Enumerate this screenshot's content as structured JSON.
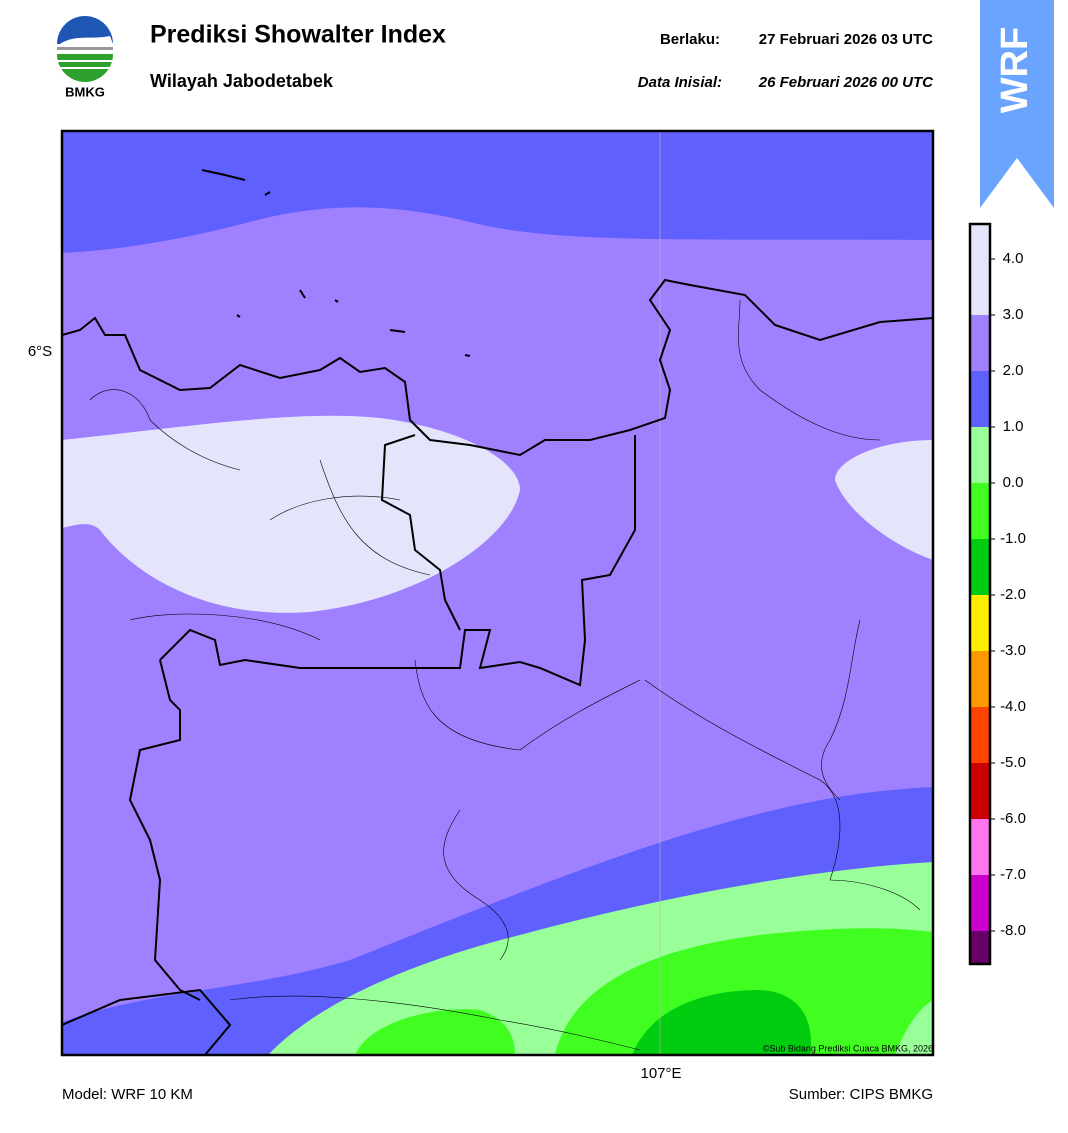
{
  "logo": {
    "text": "BMKG"
  },
  "header": {
    "title": "Prediksi Showalter Index",
    "subtitle": "Wilayah Jabodetabek",
    "valid_label": "Berlaku:",
    "valid_time": "27 Februari 2026 03 UTC",
    "init_label": "Data Inisial:",
    "init_time": "26 Februari 2026 00 UTC"
  },
  "badge": {
    "text": "WRF"
  },
  "map": {
    "lat_labels": [
      "6°S"
    ],
    "lon_labels": [
      "107°E"
    ],
    "credit": "©Sub Bidang Prediksi Cuaca BMKG, 2026"
  },
  "colorbar": {
    "ticks": [
      {
        "value": 4,
        "label": "4.0"
      },
      {
        "value": 3,
        "label": "3.0"
      },
      {
        "value": 2,
        "label": "2.0"
      },
      {
        "value": 1,
        "label": "1.0"
      },
      {
        "value": 0,
        "label": "0.0"
      },
      {
        "value": -1,
        "label": "-1.0"
      },
      {
        "value": -2,
        "label": "-2.0"
      },
      {
        "value": -3,
        "label": "-3.0"
      },
      {
        "value": -4,
        "label": "-4.0"
      },
      {
        "value": -5,
        "label": "-5.0"
      },
      {
        "value": -6,
        "label": "-6.0"
      },
      {
        "value": -7,
        "label": "-7.0"
      },
      {
        "value": -8,
        "label": "-8.0"
      }
    ],
    "colors": [
      "#e4e4fb",
      "#9f80ff",
      "#6060ff",
      "#99ff99",
      "#40ff20",
      "#00cc10",
      "#ffee00",
      "#ff9900",
      "#ff4400",
      "#cc0000",
      "#ff77ee",
      "#cc00cc",
      "#660066"
    ]
  },
  "footer": {
    "model": "Model: WRF 10 KM",
    "source": "Sumber: CIPS BMKG"
  }
}
